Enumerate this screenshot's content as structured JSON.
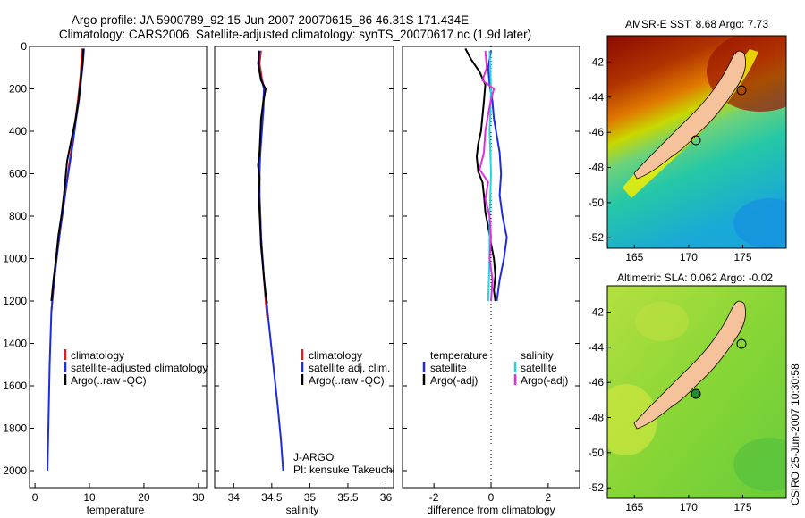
{
  "header": {
    "title_line1": "Argo profile: JA 5900789_92 15-Jun-2007 20070615_86 46.31S 171.434E",
    "title_line2": "Climatology: CARS2006. Satellite-adjusted climatology: synTS_20070617.nc (1.9d later)"
  },
  "footer": {
    "credit": "CSIRO 25-Jun-2007 10:30:58",
    "jargo": "J-ARGO",
    "pi": "PI: kensuke Takeuchi"
  },
  "colors": {
    "climatology": "#e8191b",
    "satellite": "#1f2be0",
    "argo": "#000000",
    "sat_salinity": "#22d6dc",
    "argo_salinity_diff": "#e22de0",
    "land": "#f5c29c"
  },
  "chart_data": [
    {
      "id": "temperature",
      "type": "line",
      "xlabel": "temperature",
      "ylabel": "",
      "xlim": [
        -1,
        31.5
      ],
      "ylim": [
        2080,
        0
      ],
      "xticks": [
        0,
        10,
        20,
        30
      ],
      "yticks": [
        0,
        200,
        400,
        600,
        800,
        1000,
        1200,
        1400,
        1600,
        1800,
        2000
      ],
      "legend_position": "lower-right",
      "legend": [
        "climatology",
        "satellite-adjusted climatology",
        "Argo(..raw -QC)"
      ],
      "series": [
        {
          "name": "climatology",
          "color_key": "climatology",
          "points": [
            [
              8.6,
              10
            ],
            [
              8.5,
              80
            ],
            [
              8.3,
              150
            ],
            [
              7.9,
              250
            ],
            [
              7.4,
              350
            ],
            [
              6.9,
              450
            ],
            [
              6.3,
              550
            ],
            [
              5.8,
              650
            ],
            [
              5.2,
              760
            ],
            [
              4.6,
              870
            ],
            [
              4.0,
              990
            ],
            [
              3.5,
              1110
            ],
            [
              3.0,
              1250
            ]
          ]
        },
        {
          "name": "satellite-adjusted climatology",
          "color_key": "satellite",
          "points": [
            [
              9.0,
              10
            ],
            [
              8.8,
              80
            ],
            [
              8.5,
              150
            ],
            [
              8.1,
              250
            ],
            [
              7.5,
              350
            ],
            [
              7.0,
              450
            ],
            [
              6.4,
              550
            ],
            [
              5.8,
              650
            ],
            [
              5.2,
              760
            ],
            [
              4.6,
              870
            ],
            [
              4.0,
              990
            ],
            [
              3.5,
              1110
            ],
            [
              3.0,
              1250
            ],
            [
              2.7,
              1500
            ],
            [
              2.5,
              1750
            ],
            [
              2.3,
              2000
            ]
          ]
        },
        {
          "name": "Argo(..raw -QC)",
          "color_key": "argo",
          "points": [
            [
              8.9,
              10
            ],
            [
              8.7,
              80
            ],
            [
              8.4,
              150
            ],
            [
              8.0,
              250
            ],
            [
              7.4,
              350
            ],
            [
              6.6,
              450
            ],
            [
              5.9,
              540
            ],
            [
              5.6,
              620
            ],
            [
              5.3,
              700
            ],
            [
              4.9,
              790
            ],
            [
              4.3,
              890
            ],
            [
              3.9,
              990
            ],
            [
              3.4,
              1100
            ],
            [
              3.0,
              1200
            ]
          ]
        }
      ]
    },
    {
      "id": "salinity",
      "type": "line",
      "xlabel": "salinity",
      "ylabel": "",
      "xlim": [
        33.75,
        36.1
      ],
      "ylim": [
        2080,
        0
      ],
      "xticks": [
        34,
        34.5,
        35,
        35.5,
        36
      ],
      "legend_position": "lower-right",
      "legend": [
        "climatology",
        "satellite adj. clim.",
        "Argo(..raw -QC)"
      ],
      "series": [
        {
          "name": "climatology",
          "color_key": "climatology",
          "points": [
            [
              34.36,
              20
            ],
            [
              34.34,
              80
            ],
            [
              34.37,
              150
            ],
            [
              34.4,
              200
            ],
            [
              34.38,
              300
            ],
            [
              34.36,
              400
            ],
            [
              34.34,
              500
            ],
            [
              34.34,
              600
            ],
            [
              34.34,
              700
            ],
            [
              34.35,
              800
            ],
            [
              34.36,
              900
            ],
            [
              34.38,
              1000
            ],
            [
              34.4,
              1100
            ],
            [
              34.42,
              1200
            ],
            [
              34.44,
              1280
            ]
          ]
        },
        {
          "name": "satellite adj. clim.",
          "color_key": "satellite",
          "points": [
            [
              34.34,
              20
            ],
            [
              34.32,
              80
            ],
            [
              34.36,
              150
            ],
            [
              34.4,
              200
            ],
            [
              34.39,
              300
            ],
            [
              34.37,
              400
            ],
            [
              34.35,
              500
            ],
            [
              34.34,
              600
            ],
            [
              34.34,
              700
            ],
            [
              34.35,
              800
            ],
            [
              34.36,
              900
            ],
            [
              34.38,
              1000
            ],
            [
              34.4,
              1100
            ],
            [
              34.43,
              1200
            ],
            [
              34.46,
              1300
            ],
            [
              34.52,
              1500
            ],
            [
              34.58,
              1700
            ],
            [
              34.62,
              1850
            ],
            [
              34.65,
              2000
            ]
          ]
        },
        {
          "name": "Argo(..raw -QC)",
          "color_key": "argo",
          "points": [
            [
              34.33,
              20
            ],
            [
              34.33,
              100
            ],
            [
              34.36,
              160
            ],
            [
              34.42,
              200
            ],
            [
              34.39,
              260
            ],
            [
              34.36,
              340
            ],
            [
              34.35,
              420
            ],
            [
              34.34,
              500
            ],
            [
              34.32,
              560
            ],
            [
              34.34,
              620
            ],
            [
              34.33,
              700
            ],
            [
              34.34,
              780
            ],
            [
              34.35,
              860
            ],
            [
              34.36,
              940
            ],
            [
              34.38,
              1020
            ],
            [
              34.4,
              1100
            ],
            [
              34.42,
              1170
            ],
            [
              34.44,
              1210
            ]
          ]
        }
      ]
    },
    {
      "id": "difference",
      "type": "line",
      "xlabel": "difference from climatology",
      "ylabel": "",
      "xlim": [
        -3.1,
        3.1
      ],
      "ylim": [
        2080,
        0
      ],
      "xticks": [
        -2,
        0,
        2
      ],
      "legend_position": "lower-right",
      "legend_headers": [
        "temperature",
        "salinity"
      ],
      "legend": [
        "satellite",
        "Argo(-adj)",
        "satellite",
        "Argo(-adj)"
      ],
      "series": [
        {
          "name": "temperature satellite",
          "color_key": "satellite",
          "points": [
            [
              0.0,
              20
            ],
            [
              -0.1,
              100
            ],
            [
              -0.05,
              180
            ],
            [
              0.05,
              260
            ],
            [
              0.1,
              340
            ],
            [
              0.2,
              420
            ],
            [
              0.3,
              500
            ],
            [
              0.35,
              600
            ],
            [
              0.3,
              700
            ],
            [
              0.4,
              800
            ],
            [
              0.55,
              900
            ],
            [
              0.45,
              1000
            ],
            [
              0.3,
              1100
            ],
            [
              0.2,
              1200
            ]
          ]
        },
        {
          "name": "temperature Argo(-adj)",
          "color_key": "argo",
          "points": [
            [
              -0.9,
              10
            ],
            [
              -0.7,
              60
            ],
            [
              -0.4,
              120
            ],
            [
              -0.2,
              180
            ],
            [
              -0.25,
              260
            ],
            [
              -0.3,
              330
            ],
            [
              -0.35,
              400
            ],
            [
              -0.45,
              460
            ],
            [
              -0.5,
              520
            ],
            [
              -0.45,
              590
            ],
            [
              -0.3,
              640
            ],
            [
              -0.25,
              700
            ],
            [
              -0.2,
              780
            ],
            [
              -0.1,
              850
            ],
            [
              0.0,
              930
            ],
            [
              0.1,
              1000
            ],
            [
              0.15,
              1080
            ],
            [
              0.1,
              1150
            ],
            [
              0.15,
              1200
            ]
          ]
        },
        {
          "name": "salinity satellite",
          "color_key": "sat_salinity",
          "points": [
            [
              -0.05,
              20
            ],
            [
              0.0,
              200
            ],
            [
              -0.05,
              400
            ],
            [
              0.0,
              600
            ],
            [
              -0.05,
              800
            ],
            [
              -0.05,
              1000
            ],
            [
              -0.1,
              1200
            ]
          ]
        },
        {
          "name": "salinity Argo(-adj)",
          "color_key": "argo_salinity_diff",
          "points": [
            [
              -0.2,
              20
            ],
            [
              -0.15,
              100
            ],
            [
              -0.3,
              160
            ],
            [
              0.1,
              200
            ],
            [
              0.0,
              250
            ],
            [
              -0.1,
              320
            ],
            [
              -0.2,
              400
            ],
            [
              -0.25,
              500
            ],
            [
              -0.4,
              580
            ],
            [
              -0.1,
              640
            ],
            [
              -0.2,
              720
            ],
            [
              -0.05,
              800
            ],
            [
              0.0,
              900
            ],
            [
              -0.05,
              1000
            ],
            [
              0.05,
              1100
            ],
            [
              0.0,
              1200
            ]
          ]
        }
      ]
    },
    {
      "id": "sst-map",
      "type": "heatmap",
      "title": "AMSR-E SST: 8.68 Argo: 7.73",
      "xlim": [
        162.5,
        179
      ],
      "ylim": [
        -52.6,
        -40.5
      ],
      "xticks": [
        165,
        170,
        175
      ],
      "yticks": [
        -42,
        -44,
        -46,
        -48,
        -50,
        -52
      ],
      "argo_position": [
        171.434,
        -46.31
      ]
    },
    {
      "id": "sla-map",
      "type": "heatmap",
      "title": "Altimetric SLA: 0.062 Argo: -0.02",
      "xlim": [
        162.5,
        179
      ],
      "ylim": [
        -52.6,
        -40.5
      ],
      "xticks": [
        165,
        170,
        175
      ],
      "yticks": [
        -42,
        -44,
        -46,
        -48,
        -50,
        -52
      ],
      "argo_position": [
        171.434,
        -46.31
      ]
    }
  ]
}
